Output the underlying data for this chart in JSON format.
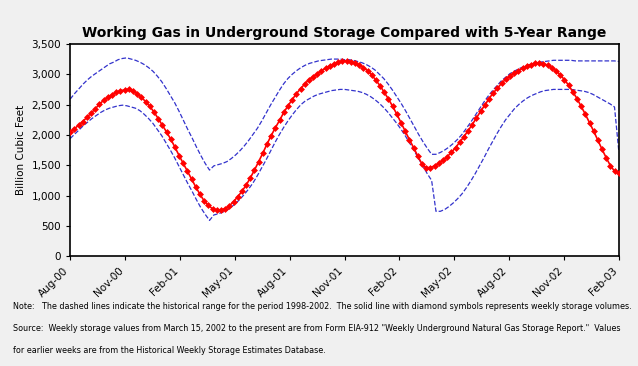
{
  "title": "Working Gas in Underground Storage Compared with 5-Year Range",
  "ylabel": "Billion Cubic Feet",
  "ylim": [
    0,
    3500
  ],
  "yticks": [
    0,
    500,
    1000,
    1500,
    2000,
    2500,
    3000,
    3500
  ],
  "note_line1": "Note:   The dashed lines indicate the historical range for the period 1998-2002.  The solid line with diamond symbols represents weekly storage volumes.",
  "note_line2": "Source:  Weekly storage values from March 15, 2002 to the present are from Form EIA-912 \"Weekly Underground Natural Gas Storage Report.\"  Values",
  "note_line3": "for earlier weeks are from the Historical Weekly Storage Estimates Database.",
  "red_line_color": "#FF0000",
  "blue_dash_color": "#3333CC",
  "background_color": "#F0F0F0",
  "plot_bg_color": "#FFFFFF",
  "xtick_labels": [
    "Aug-00",
    "Nov-00",
    "Feb-01",
    "May-01",
    "Aug-01",
    "Nov-01",
    "Feb-02",
    "May-02",
    "Aug-02",
    "Nov-02",
    "Feb-03"
  ],
  "red_data": [
    2050,
    2100,
    2160,
    2220,
    2290,
    2360,
    2430,
    2510,
    2570,
    2620,
    2660,
    2700,
    2730,
    2740,
    2750,
    2730,
    2680,
    2620,
    2550,
    2470,
    2380,
    2270,
    2160,
    2050,
    1930,
    1800,
    1660,
    1530,
    1400,
    1270,
    1140,
    1020,
    910,
    840,
    780,
    755,
    760,
    785,
    830,
    900,
    980,
    1070,
    1170,
    1290,
    1420,
    1560,
    1700,
    1850,
    1990,
    2120,
    2240,
    2370,
    2480,
    2580,
    2680,
    2760,
    2840,
    2910,
    2960,
    3010,
    3060,
    3100,
    3140,
    3170,
    3200,
    3220,
    3220,
    3210,
    3190,
    3160,
    3110,
    3060,
    2990,
    2900,
    2810,
    2700,
    2590,
    2470,
    2340,
    2200,
    2060,
    1920,
    1790,
    1650,
    1520,
    1460,
    1460,
    1490,
    1530,
    1580,
    1640,
    1710,
    1790,
    1880,
    1970,
    2070,
    2170,
    2280,
    2390,
    2490,
    2600,
    2690,
    2770,
    2850,
    2920,
    2970,
    3020,
    3060,
    3100,
    3130,
    3160,
    3180,
    3180,
    3170,
    3150,
    3110,
    3060,
    2990,
    2910,
    2820,
    2710,
    2600,
    2470,
    2340,
    2200,
    2060,
    1910,
    1760,
    1620,
    1490,
    1400,
    1370
  ],
  "upper_data": [
    2590,
    2680,
    2760,
    2840,
    2910,
    2970,
    3020,
    3070,
    3120,
    3170,
    3200,
    3240,
    3260,
    3270,
    3250,
    3230,
    3200,
    3160,
    3110,
    3050,
    2970,
    2880,
    2770,
    2650,
    2530,
    2390,
    2240,
    2090,
    1950,
    1800,
    1660,
    1530,
    1420,
    1490,
    1510,
    1530,
    1560,
    1610,
    1670,
    1740,
    1820,
    1910,
    2010,
    2110,
    2230,
    2360,
    2490,
    2610,
    2730,
    2840,
    2930,
    3000,
    3060,
    3110,
    3150,
    3180,
    3200,
    3220,
    3230,
    3240,
    3250,
    3250,
    3250,
    3240,
    3240,
    3230,
    3210,
    3190,
    3160,
    3120,
    3070,
    3000,
    2930,
    2840,
    2740,
    2630,
    2520,
    2400,
    2270,
    2140,
    2010,
    1890,
    1780,
    1680,
    1680,
    1710,
    1750,
    1800,
    1860,
    1930,
    2010,
    2110,
    2210,
    2320,
    2430,
    2540,
    2640,
    2730,
    2810,
    2890,
    2950,
    3010,
    3050,
    3090,
    3120,
    3150,
    3170,
    3190,
    3200,
    3210,
    3220,
    3230,
    3230,
    3230,
    3230,
    3230,
    3220,
    3220,
    3220,
    3220,
    3220,
    3220,
    3220,
    3220,
    3220,
    3220,
    3210
  ],
  "lower_data": [
    1940,
    2010,
    2080,
    2150,
    2210,
    2270,
    2320,
    2370,
    2410,
    2440,
    2460,
    2480,
    2490,
    2480,
    2460,
    2440,
    2400,
    2340,
    2270,
    2190,
    2090,
    1990,
    1870,
    1750,
    1620,
    1480,
    1340,
    1200,
    1070,
    930,
    800,
    690,
    590,
    680,
    700,
    725,
    760,
    810,
    870,
    940,
    1020,
    1110,
    1210,
    1330,
    1460,
    1590,
    1730,
    1870,
    2000,
    2120,
    2230,
    2330,
    2420,
    2500,
    2560,
    2600,
    2640,
    2670,
    2690,
    2710,
    2730,
    2740,
    2750,
    2750,
    2740,
    2730,
    2720,
    2700,
    2670,
    2630,
    2580,
    2520,
    2450,
    2370,
    2280,
    2190,
    2090,
    1980,
    1860,
    1740,
    1610,
    1490,
    1360,
    1250,
    740,
    740,
    770,
    820,
    880,
    950,
    1030,
    1130,
    1240,
    1360,
    1490,
    1620,
    1760,
    1890,
    2020,
    2140,
    2250,
    2340,
    2430,
    2500,
    2560,
    2610,
    2650,
    2680,
    2710,
    2730,
    2740,
    2750,
    2750,
    2750,
    2750,
    2750,
    2740,
    2730,
    2720,
    2700,
    2670,
    2630,
    2590,
    2550,
    2510,
    2460,
    1720
  ]
}
